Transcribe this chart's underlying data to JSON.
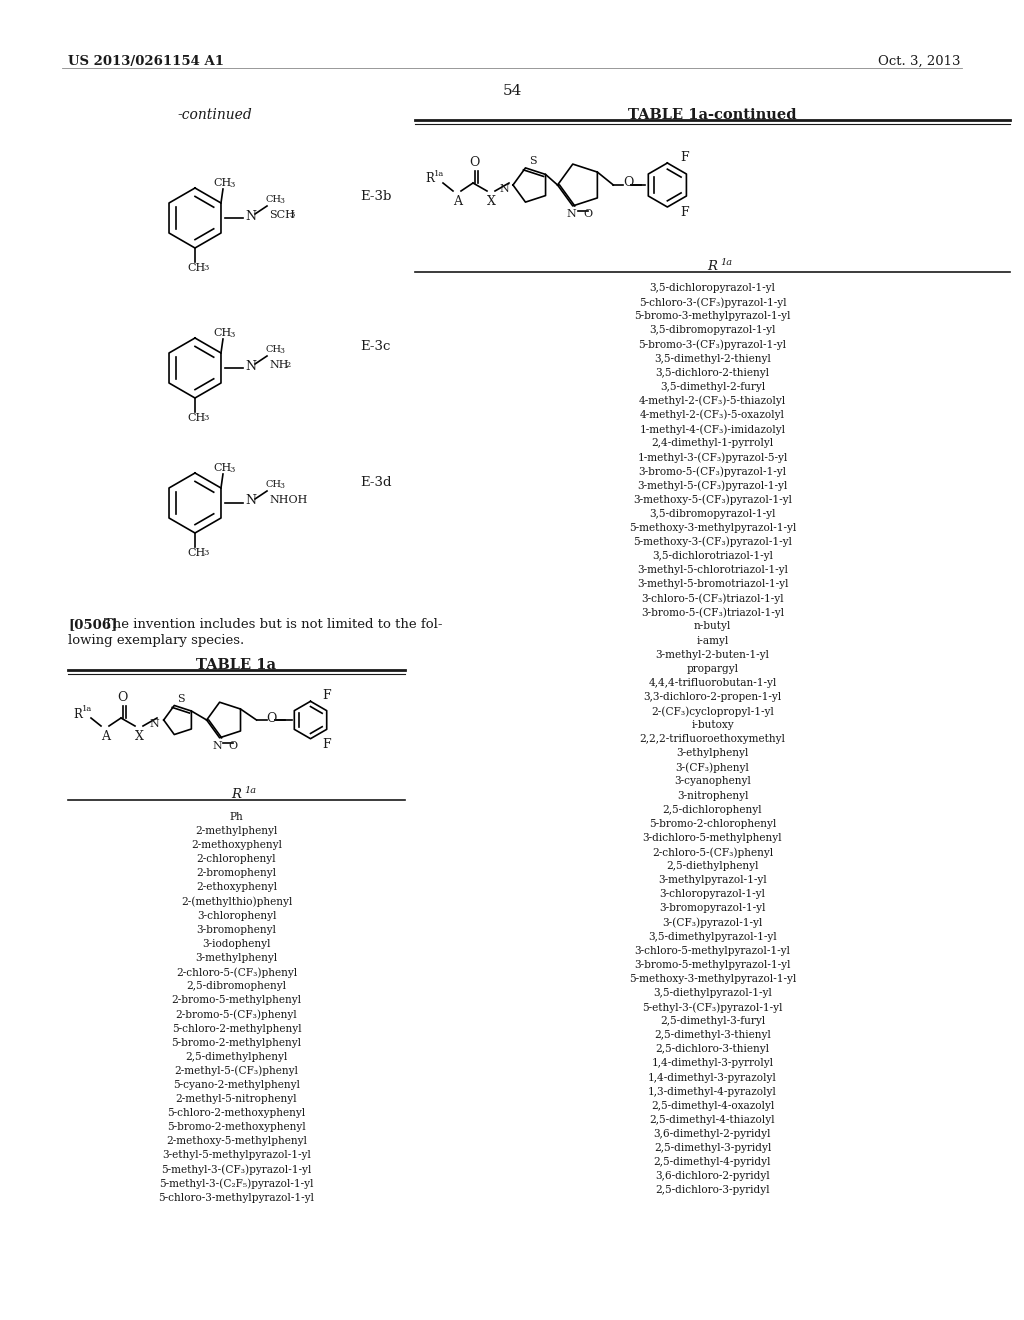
{
  "page_header_left": "US 2013/0261154 A1",
  "page_header_right": "Oct. 3, 2013",
  "page_number": "54",
  "background_color": "#ffffff",
  "text_color": "#1a1a1a",
  "continued_label": "-continued",
  "label_e3b": "E-3b",
  "label_e3c": "E-3c",
  "label_e3d": "E-3d",
  "table1a_title": "TABLE 1a",
  "table1a_continued_title": "TABLE 1a-continued",
  "para_bold": "[0506]",
  "para_line1": "The invention includes but is not limited to the fol-",
  "para_line2": "lowing exemplary species.",
  "table1a_r1a_entries": [
    "Ph",
    "2-methylphenyl",
    "2-methoxyphenyl",
    "2-chlorophenyl",
    "2-bromophenyl",
    "2-ethoxyphenyl",
    "2-(methylthio)phenyl",
    "3-chlorophenyl",
    "3-bromophenyl",
    "3-iodophenyl",
    "3-methylphenyl",
    "2-chloro-5-(CF₃)phenyl",
    "2,5-dibromophenyl",
    "2-bromo-5-methylphenyl",
    "2-bromo-5-(CF₃)phenyl",
    "5-chloro-2-methylphenyl",
    "5-bromo-2-methylphenyl",
    "2,5-dimethylphenyl",
    "2-methyl-5-(CF₃)phenyl",
    "5-cyano-2-methylphenyl",
    "2-methyl-5-nitrophenyl",
    "5-chloro-2-methoxyphenyl",
    "5-bromo-2-methoxyphenyl",
    "2-methoxy-5-methylphenyl",
    "3-ethyl-5-methylpyrazol-1-yl",
    "5-methyl-3-(CF₃)pyrazol-1-yl",
    "5-methyl-3-(C₂F₅)pyrazol-1-yl",
    "5-chloro-3-methylpyrazol-1-yl"
  ],
  "table1a_continued_entries": [
    "3,5-dichloropyrazol-1-yl",
    "5-chloro-3-(CF₃)pyrazol-1-yl",
    "5-bromo-3-methylpyrazol-1-yl",
    "3,5-dibromopyrazol-1-yl",
    "5-bromo-3-(CF₃)pyrazol-1-yl",
    "3,5-dimethyl-2-thienyl",
    "3,5-dichloro-2-thienyl",
    "3,5-dimethyl-2-furyl",
    "4-methyl-2-(CF₃)-5-thiazolyl",
    "4-methyl-2-(CF₃)-5-oxazolyl",
    "1-methyl-4-(CF₃)-imidazolyl",
    "2,4-dimethyl-1-pyrrolyl",
    "1-methyl-3-(CF₃)pyrazol-5-yl",
    "3-bromo-5-(CF₃)pyrazol-1-yl",
    "3-methyl-5-(CF₃)pyrazol-1-yl",
    "3-methoxy-5-(CF₃)pyrazol-1-yl",
    "3,5-dibromopyrazol-1-yl",
    "5-methoxy-3-methylpyrazol-1-yl",
    "5-methoxy-3-(CF₃)pyrazol-1-yl",
    "3,5-dichlorotriazol-1-yl",
    "3-methyl-5-chlorotriazol-1-yl",
    "3-methyl-5-bromotriazol-1-yl",
    "3-chloro-5-(CF₃)triazol-1-yl",
    "3-bromo-5-(CF₃)triazol-1-yl",
    "n-butyl",
    "i-amyl",
    "3-methyl-2-buten-1-yl",
    "propargyl",
    "4,4,4-trifluorobutan-1-yl",
    "3,3-dichloro-2-propen-1-yl",
    "2-(CF₃)cyclopropyl-1-yl",
    "i-butoxy",
    "2,2,2-trifluoroethoxymethyl",
    "3-ethylphenyl",
    "3-(CF₃)phenyl",
    "3-cyanophenyl",
    "3-nitrophenyl",
    "2,5-dichlorophenyl",
    "5-bromo-2-chlorophenyl",
    "3-dichloro-5-methylphenyl",
    "2-chloro-5-(CF₃)phenyl",
    "2,5-diethylphenyl",
    "3-methylpyrazol-1-yl",
    "3-chloropyrazol-1-yl",
    "3-bromopyrazol-1-yl",
    "3-(CF₃)pyrazol-1-yl",
    "3,5-dimethylpyrazol-1-yl",
    "3-chloro-5-methylpyrazol-1-yl",
    "3-bromo-5-methylpyrazol-1-yl",
    "5-methoxy-3-methylpyrazol-1-yl",
    "3,5-diethylpyrazol-1-yl",
    "5-ethyl-3-(CF₃)pyrazol-1-yl",
    "2,5-dimethyl-3-furyl",
    "2,5-dimethyl-3-thienyl",
    "2,5-dichloro-3-thienyl",
    "1,4-dimethyl-3-pyrrolyl",
    "1,4-dimethyl-3-pyrazolyl",
    "1,3-dimethyl-4-pyrazolyl",
    "2,5-dimethyl-4-oxazolyl",
    "2,5-dimethyl-4-thiazolyl",
    "3,6-dimethyl-2-pyridyl",
    "2,5-dimethyl-3-pyridyl",
    "2,5-dimethyl-4-pyridyl",
    "3,6-dichloro-2-pyridyl",
    "2,5-dichloro-3-pyridyl"
  ]
}
